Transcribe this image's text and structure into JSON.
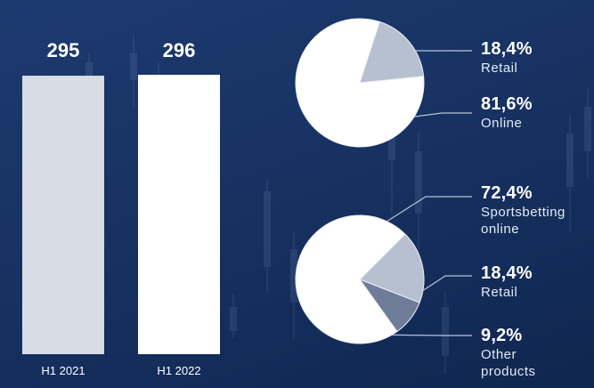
{
  "colors": {
    "background": "#17305f",
    "bar_2021": "#d7dce5",
    "bar_2022": "#ffffff",
    "pie_main": "#ffffff",
    "pie_mid": "#b7c0d0",
    "pie_dark": "#6e7c99",
    "leader_line": "#b8c3d6"
  },
  "chart_data": [
    {
      "type": "bar",
      "categories": [
        "H1 2021",
        "H1 2022"
      ],
      "values": [
        295,
        296
      ],
      "value_labels": [
        "295",
        "296"
      ]
    },
    {
      "type": "pie",
      "slices": [
        {
          "value_label": "18,4%",
          "label": "Retail",
          "value": 18.4,
          "color": "#b7c0d0"
        },
        {
          "value_label": "81,6%",
          "label": "Online",
          "value": 81.6,
          "color": "#ffffff"
        }
      ]
    },
    {
      "type": "pie",
      "slices": [
        {
          "value_label": "72,4%",
          "label": "Sportsbetting online",
          "label_lines": [
            "Sportsbetting",
            "online"
          ],
          "value": 72.4,
          "color": "#ffffff"
        },
        {
          "value_label": "18,4%",
          "label": "Retail",
          "label_lines": [
            "Retail"
          ],
          "value": 18.4,
          "color": "#b7c0d0"
        },
        {
          "value_label": "9,2%",
          "label": "Other products",
          "label_lines": [
            "Other",
            "products"
          ],
          "value": 9.2,
          "color": "#6e7c99"
        }
      ]
    }
  ]
}
